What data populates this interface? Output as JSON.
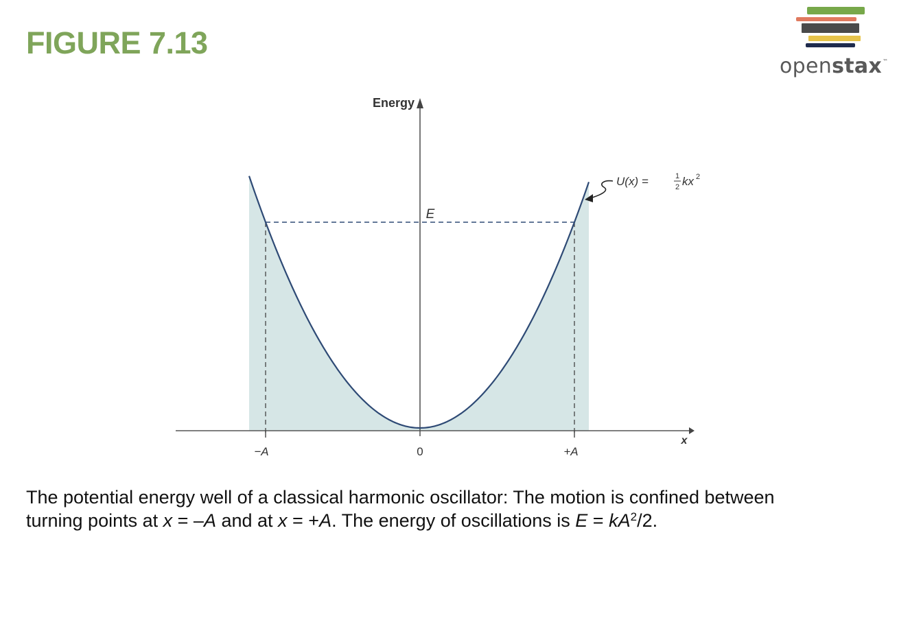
{
  "figure_label": "FIGURE 7.13",
  "brand": {
    "name_light": "open",
    "name_bold": "stax",
    "trademark": "™",
    "stripe_colors": [
      "#77a84a",
      "#e07a5f",
      "#4a4a4a",
      "#e6c34a",
      "#1f2b4d"
    ]
  },
  "diagram": {
    "y_axis_label": "Energy",
    "x_axis_label": "x",
    "energy_label": "E",
    "tick_labels": {
      "minus_a": "−A",
      "zero": "0",
      "plus_a": "+A"
    },
    "curve_label": {
      "lhs": "U(x) =",
      "frac_num": "1",
      "frac_den": "2",
      "rhs_var": "kx",
      "rhs_exp": "2"
    },
    "colors": {
      "curve": "#2e4a75",
      "fill": "#d6e6e6",
      "axis": "#555555",
      "dashed": "#2e4a75"
    }
  },
  "caption": {
    "line1": "The potential energy well of a classical harmonic oscillator: The motion is confined between",
    "line2_a": "turning points at ",
    "x1": "x",
    "eq1": " = –",
    "A1": "A",
    "and": " and at ",
    "x2": "x",
    "eq2": " = +",
    "A2": "A",
    "line2_b": ". The energy of oscillations is ",
    "E": "E",
    "eq3": " = ",
    "kA": "kA",
    "sup": "2",
    "end": "/2."
  }
}
